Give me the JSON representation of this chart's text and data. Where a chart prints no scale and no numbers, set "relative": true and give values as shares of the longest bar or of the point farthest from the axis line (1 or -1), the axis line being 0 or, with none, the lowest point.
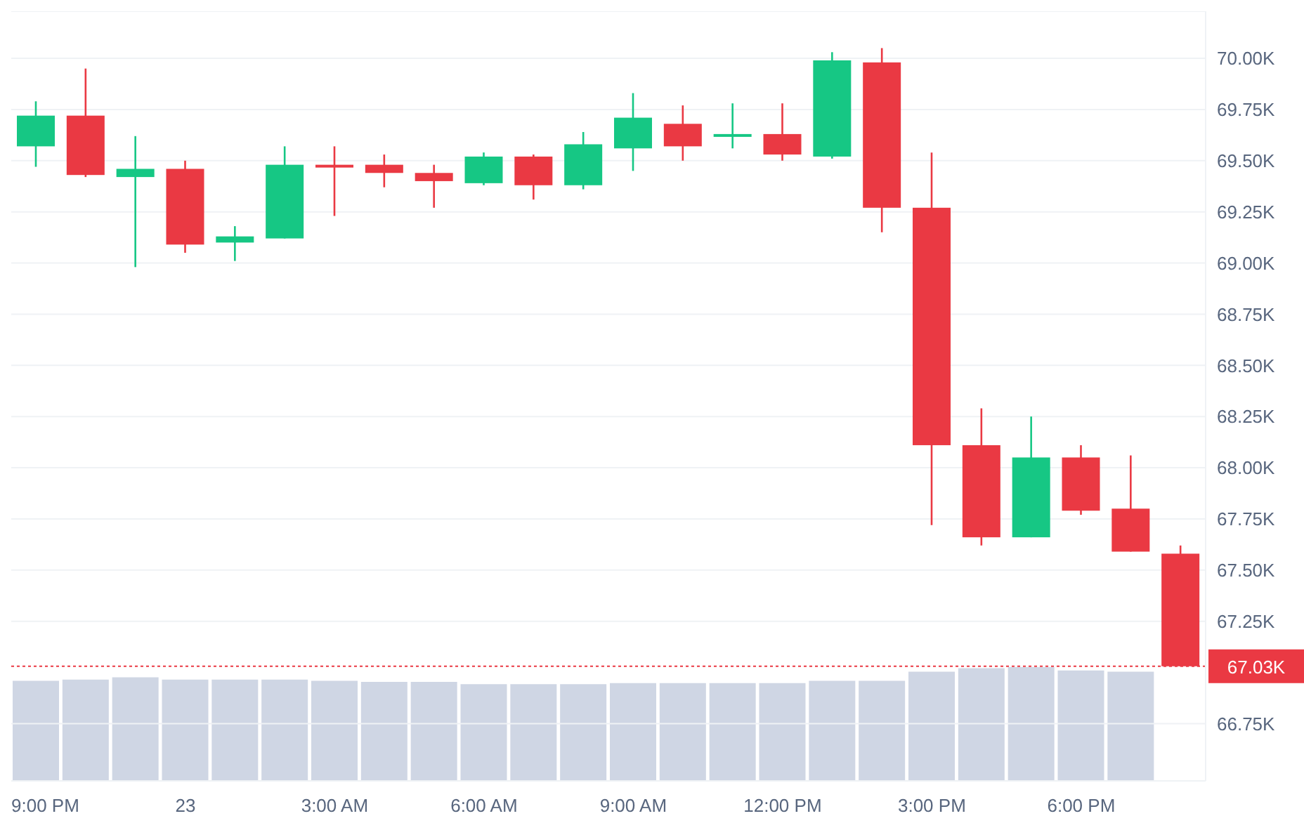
{
  "chart_data": [
    {
      "type": "candlestick",
      "categories": [
        "9:00 PM",
        null,
        null,
        "23",
        null,
        null,
        "3:00 AM",
        null,
        null,
        "6:00 AM",
        null,
        null,
        "9:00 AM",
        null,
        null,
        "12:00 PM",
        null,
        null,
        "3:00 PM",
        null,
        null,
        "6:00 PM",
        null,
        null
      ],
      "ylim": [
        66.47,
        70.23
      ],
      "yticks": [
        {
          "value": 66.75,
          "label": "66.75K"
        },
        {
          "value": 67.25,
          "label": "67.25K"
        },
        {
          "value": 67.5,
          "label": "67.50K"
        },
        {
          "value": 67.75,
          "label": "67.75K"
        },
        {
          "value": 68,
          "label": "68.00K"
        },
        {
          "value": 68.25,
          "label": "68.25K"
        },
        {
          "value": 68.5,
          "label": "68.50K"
        },
        {
          "value": 68.75,
          "label": "68.75K"
        },
        {
          "value": 69,
          "label": "69.00K"
        },
        {
          "value": 69.25,
          "label": "69.25K"
        },
        {
          "value": 69.5,
          "label": "69.50K"
        },
        {
          "value": 69.75,
          "label": "69.75K"
        },
        {
          "value": 70,
          "label": "70.00K"
        }
      ],
      "grid": "y",
      "ohlc": [
        [
          69.57,
          69.79,
          69.47,
          69.72
        ],
        [
          69.72,
          69.95,
          69.42,
          69.43
        ],
        [
          69.42,
          69.62,
          68.98,
          69.46
        ],
        [
          69.46,
          69.5,
          69.05,
          69.09
        ],
        [
          69.1,
          69.18,
          69.01,
          69.13
        ],
        [
          69.12,
          69.57,
          69.12,
          69.48
        ],
        [
          69.48,
          69.57,
          69.23,
          69.47
        ],
        [
          69.48,
          69.53,
          69.37,
          69.44
        ],
        [
          69.44,
          69.48,
          69.27,
          69.4
        ],
        [
          69.39,
          69.54,
          69.38,
          69.52
        ],
        [
          69.52,
          69.53,
          69.31,
          69.38
        ],
        [
          69.38,
          69.64,
          69.36,
          69.58
        ],
        [
          69.56,
          69.83,
          69.45,
          69.71
        ],
        [
          69.68,
          69.77,
          69.5,
          69.57
        ],
        [
          69.62,
          69.78,
          69.56,
          69.63
        ],
        [
          69.63,
          69.78,
          69.5,
          69.53
        ],
        [
          69.52,
          70.03,
          69.51,
          69.99
        ],
        [
          69.98,
          70.05,
          69.15,
          69.27
        ],
        [
          69.27,
          69.54,
          67.72,
          68.11
        ],
        [
          68.11,
          68.29,
          67.62,
          67.66
        ],
        [
          67.66,
          68.25,
          67.66,
          68.05
        ],
        [
          68.05,
          68.11,
          67.77,
          67.79
        ],
        [
          67.8,
          68.06,
          67.59,
          67.59
        ],
        [
          67.58,
          67.62,
          67.03,
          67.03
        ]
      ],
      "colors": [
        "#16c784",
        "#ea3943",
        "#16c784",
        "#ea3943",
        "#16c784",
        "#16c784",
        "#ea3943",
        "#ea3943",
        "#ea3943",
        "#16c784",
        "#ea3943",
        "#16c784",
        "#16c784",
        "#ea3943",
        "#16c784",
        "#ea3943",
        "#16c784",
        "#ea3943",
        "#ea3943",
        "#ea3943",
        "#16c784",
        "#ea3943",
        "#ea3943",
        "#ea3943"
      ],
      "ref_lines": [
        {
          "axis": "y",
          "value": 67.03,
          "label": "67.03K",
          "color": "#ea3943",
          "line_style": "dotted"
        }
      ]
    },
    {
      "type": "bar",
      "relative": true,
      "tick_labels": false,
      "categories": [
        null,
        null,
        null,
        null,
        null,
        null,
        null,
        null,
        null,
        null,
        null,
        null,
        null,
        null,
        null,
        null,
        null,
        null,
        null,
        null,
        null,
        null,
        null,
        null
      ],
      "values": [
        0.88,
        0.89,
        0.91,
        0.89,
        0.89,
        0.89,
        0.88,
        0.87,
        0.87,
        0.85,
        0.85,
        0.85,
        0.86,
        0.86,
        0.86,
        0.86,
        0.88,
        0.88,
        0.96,
        0.99,
        1,
        0.97,
        0.96,
        null
      ],
      "color": "#cfd6e4"
    }
  ]
}
